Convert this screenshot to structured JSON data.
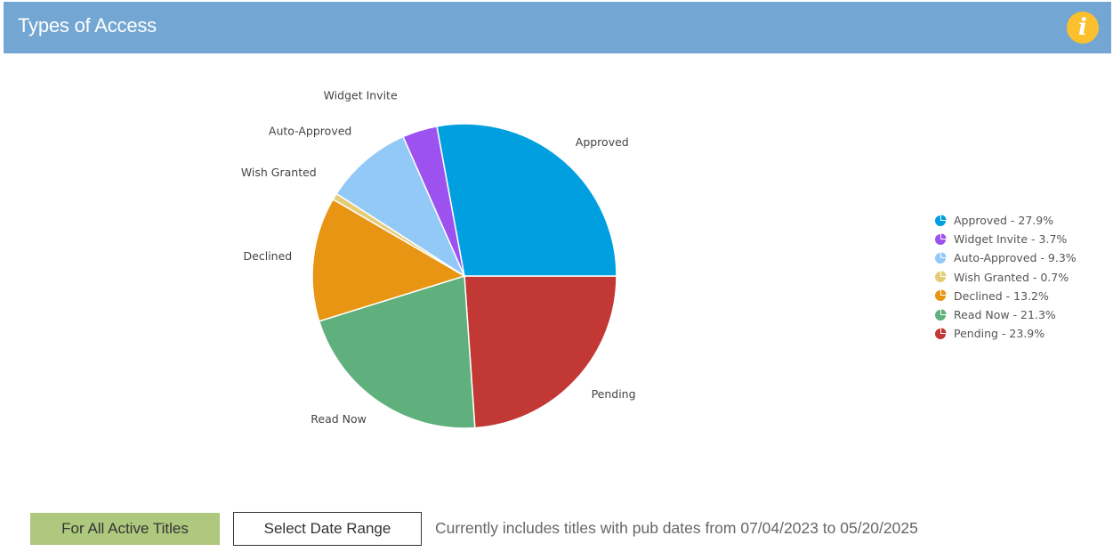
{
  "header": {
    "title": "Types of Access",
    "info_icon": "info-icon",
    "info_color": "#fbc02d",
    "background": "#73a6d2"
  },
  "chart_data": {
    "type": "pie",
    "title": "Types of Access",
    "start_angle_deg": 0,
    "direction": "clockwise",
    "legend_position": "right",
    "slices": [
      {
        "label": "Pending",
        "value": 23.9,
        "color": "#c23834"
      },
      {
        "label": "Read Now",
        "value": 21.3,
        "color": "#5fb07d"
      },
      {
        "label": "Declined",
        "value": 13.2,
        "color": "#e89514"
      },
      {
        "label": "Wish Granted",
        "value": 0.7,
        "color": "#e5cd77"
      },
      {
        "label": "Auto-Approved",
        "value": 9.3,
        "color": "#93c9f7"
      },
      {
        "label": "Widget Invite",
        "value": 3.7,
        "color": "#9d52f0"
      },
      {
        "label": "Approved",
        "value": 27.9,
        "color": "#009fe0"
      }
    ]
  },
  "legend": {
    "items": [
      {
        "text": "Approved - 27.9%",
        "color": "#009fe0"
      },
      {
        "text": "Widget Invite - 3.7%",
        "color": "#9d52f0"
      },
      {
        "text": "Auto-Approved - 9.3%",
        "color": "#93c9f7"
      },
      {
        "text": "Wish Granted - 0.7%",
        "color": "#e5cd77"
      },
      {
        "text": "Declined - 13.2%",
        "color": "#e89514"
      },
      {
        "text": "Read Now - 21.3%",
        "color": "#5fb07d"
      },
      {
        "text": "Pending - 23.9%",
        "color": "#c23834"
      }
    ]
  },
  "footer": {
    "all_titles_button": "For All Active Titles",
    "date_range_button": "Select Date Range",
    "range_note": "Currently includes titles with pub dates from 07/04/2023 to 05/20/2025"
  }
}
